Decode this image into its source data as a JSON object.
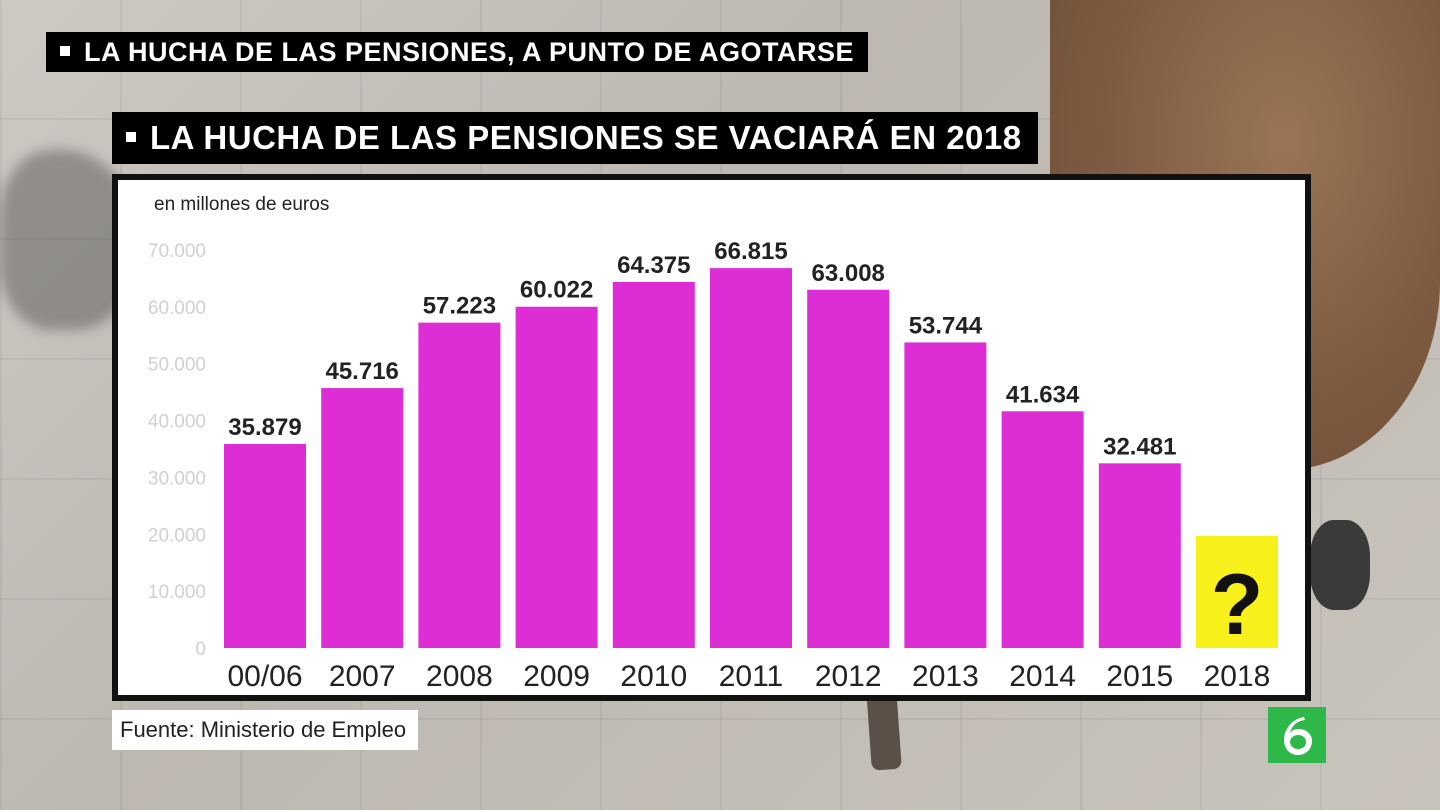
{
  "headline_top": "LA HUCHA DE LAS PENSIONES, A PUNTO DE AGOTARSE",
  "headline_main": "LA HUCHA DE LAS PENSIONES SE VACIARÁ EN 2018",
  "source": "Fuente: Ministerio de Empleo",
  "colors": {
    "bar": "#dd2ed6",
    "unknown_box": "#f7f01a",
    "logo": "#2fb84a"
  },
  "logo_icon": "lasexta-logo-icon",
  "chart_data": {
    "type": "bar",
    "unit_label": "en millones de euros",
    "categories": [
      "00/06",
      "2007",
      "2008",
      "2009",
      "2010",
      "2011",
      "2012",
      "2013",
      "2014",
      "2015",
      "2018"
    ],
    "values": [
      35879,
      45716,
      57223,
      60022,
      64375,
      66815,
      63008,
      53744,
      41634,
      32481,
      null
    ],
    "value_labels": [
      "35.879",
      "45.716",
      "57.223",
      "60.022",
      "64.375",
      "66.815",
      "63.008",
      "53.744",
      "41.634",
      "32.481",
      "?"
    ],
    "yticks": [
      0,
      10000,
      20000,
      30000,
      40000,
      50000,
      60000,
      70000
    ],
    "ytick_labels": [
      "0",
      "10.000",
      "20.000",
      "30.000",
      "40.000",
      "50.000",
      "60.000",
      "70.000"
    ],
    "ylim": [
      0,
      70000
    ],
    "grid": false,
    "legend": "none",
    "title": ""
  }
}
